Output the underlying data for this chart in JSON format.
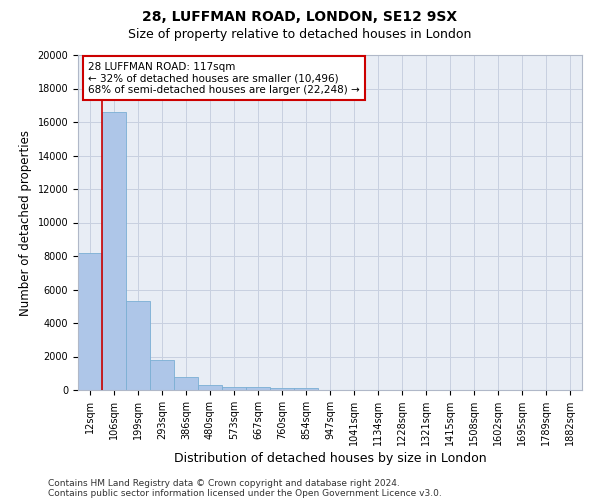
{
  "title1": "28, LUFFMAN ROAD, LONDON, SE12 9SX",
  "title2": "Size of property relative to detached houses in London",
  "xlabel": "Distribution of detached houses by size in London",
  "ylabel": "Number of detached properties",
  "categories": [
    "12sqm",
    "106sqm",
    "199sqm",
    "293sqm",
    "386sqm",
    "480sqm",
    "573sqm",
    "667sqm",
    "760sqm",
    "854sqm",
    "947sqm",
    "1041sqm",
    "1134sqm",
    "1228sqm",
    "1321sqm",
    "1415sqm",
    "1508sqm",
    "1602sqm",
    "1695sqm",
    "1789sqm",
    "1882sqm"
  ],
  "values": [
    8200,
    16600,
    5300,
    1800,
    750,
    300,
    175,
    150,
    130,
    130,
    0,
    0,
    0,
    0,
    0,
    0,
    0,
    0,
    0,
    0,
    0
  ],
  "bar_color": "#aec6e8",
  "bar_edge_color": "#7bafd4",
  "bg_color": "#e8edf5",
  "grid_color": "#c8d0e0",
  "annotation_line1": "28 LUFFMAN ROAD: 117sqm",
  "annotation_line2": "← 32% of detached houses are smaller (10,496)",
  "annotation_line3": "68% of semi-detached houses are larger (22,248) →",
  "annotation_box_color": "#ffffff",
  "annotation_box_edge": "#cc0000",
  "vline_color": "#cc0000",
  "ylim": [
    0,
    20000
  ],
  "yticks": [
    0,
    2000,
    4000,
    6000,
    8000,
    10000,
    12000,
    14000,
    16000,
    18000,
    20000
  ],
  "footnote1": "Contains HM Land Registry data © Crown copyright and database right 2024.",
  "footnote2": "Contains public sector information licensed under the Open Government Licence v3.0.",
  "title1_fontsize": 10,
  "title2_fontsize": 9,
  "axis_label_fontsize": 8.5,
  "tick_fontsize": 7,
  "annot_fontsize": 7.5,
  "footnote_fontsize": 6.5
}
